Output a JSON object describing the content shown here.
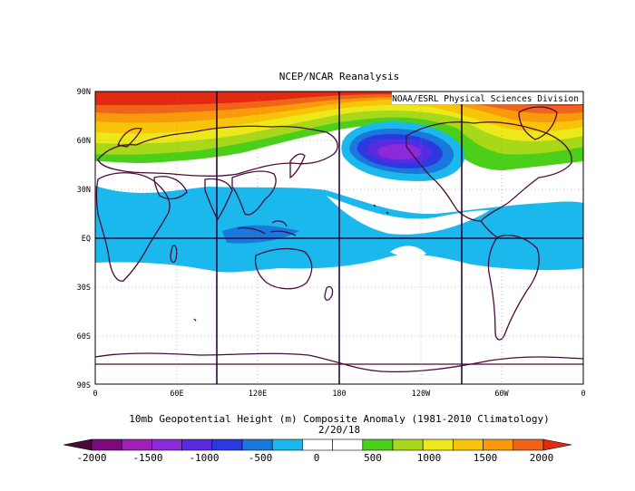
{
  "header": {
    "title": "NCEP/NCAR Reanalysis",
    "credit": "NOAA/ESRL Physical Sciences Division"
  },
  "map": {
    "lat_labels": [
      "90N",
      "60N",
      "30N",
      "EQ",
      "30S",
      "60S",
      "90S"
    ],
    "lon_labels": [
      "0",
      "60E",
      "120E",
      "180",
      "120W",
      "60W",
      "0"
    ],
    "reference_meridians": [
      "90E",
      "180",
      "90W"
    ],
    "reference_parallel": "EQ"
  },
  "caption": {
    "line1": "10mb Geopotential Height (m) Composite Anomaly (1981-2010 Climatology)",
    "line2": "2/20/18"
  },
  "colorbar": {
    "labels": [
      "-2000",
      "-1500",
      "-1000",
      "-500",
      "0",
      "500",
      "1000",
      "1500",
      "2000"
    ],
    "colors": [
      "#4a0a3a",
      "#7a0a7e",
      "#a020b8",
      "#8a2ad8",
      "#5a2ae0",
      "#2a3ae0",
      "#1a78dc",
      "#1ab8ec",
      "#ffffff",
      "#ffffff",
      "#4ccf1a",
      "#a8d81a",
      "#ece81a",
      "#f8c40a",
      "#f89a0a",
      "#f0641a",
      "#e02a12"
    ]
  },
  "chart_data": {
    "type": "heatmap",
    "title": "NCEP/NCAR Reanalysis",
    "subtitle": "10mb Geopotential Height (m) Composite Anomaly (1981-2010 Climatology) 2/20/18",
    "xlabel": "",
    "ylabel": "",
    "x_ticks": [
      "0",
      "60E",
      "120E",
      "180",
      "120W",
      "60W",
      "0"
    ],
    "y_ticks": [
      "90N",
      "60N",
      "30N",
      "EQ",
      "30S",
      "60S",
      "90S"
    ],
    "value_range": [
      -2000,
      2000
    ],
    "contour_interval": 250,
    "features": [
      {
        "region": "high latitudes northern hemisphere",
        "anomaly": 2000
      },
      {
        "region": "northeast Pacific near 55N 140W",
        "anomaly": -1250
      },
      {
        "region": "tropics 30N-30S",
        "anomaly": -250
      }
    ]
  }
}
